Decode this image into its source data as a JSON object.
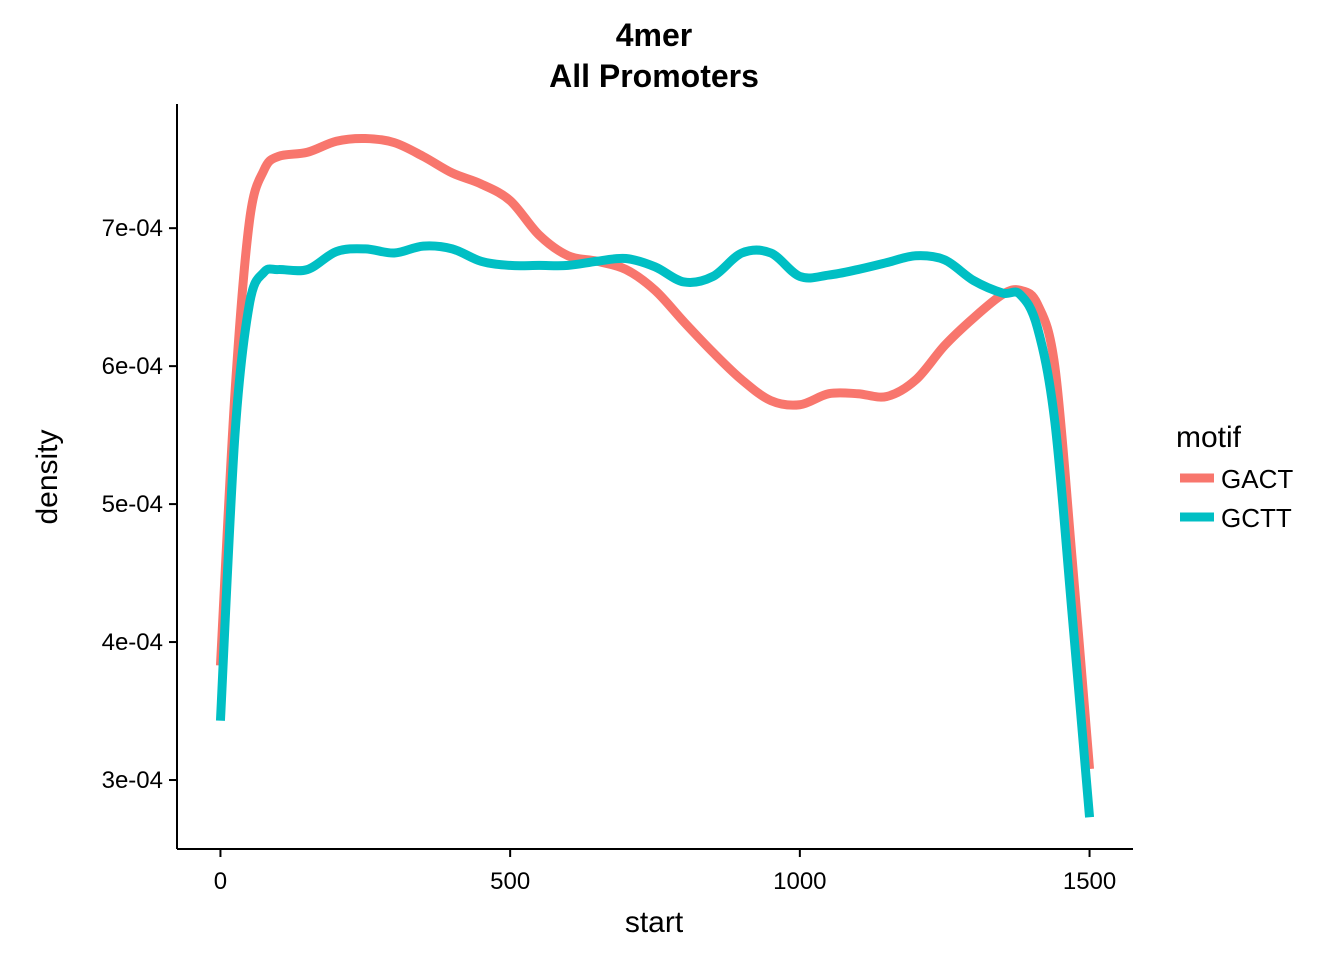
{
  "chart_data": {
    "type": "line",
    "title": [
      "4mer",
      "All Promoters"
    ],
    "xlabel": "start",
    "ylabel": "density",
    "xlim": [
      -75,
      1575
    ],
    "ylim": [
      0.00025,
      0.00079
    ],
    "x_ticks": [
      0,
      500,
      1000,
      1500
    ],
    "x_tick_labels": [
      "0",
      "500",
      "1000",
      "1500"
    ],
    "y_ticks": [
      0.0003,
      0.0004,
      0.0005,
      0.0006,
      0.0007
    ],
    "y_tick_labels": [
      "3e-04",
      "4e-04",
      "5e-04",
      "6e-04",
      "7e-04"
    ],
    "grid": false,
    "legend": {
      "title": "motif",
      "position": "right"
    },
    "series": [
      {
        "name": "GACT",
        "color": "#F8766D",
        "x": [
          0,
          25,
          50,
          75,
          100,
          150,
          200,
          250,
          300,
          350,
          400,
          450,
          500,
          550,
          600,
          650,
          700,
          750,
          800,
          850,
          900,
          950,
          1000,
          1050,
          1100,
          1150,
          1200,
          1250,
          1300,
          1350,
          1380,
          1410,
          1440,
          1470,
          1500
        ],
        "y": [
          0.000383,
          0.00058,
          0.000705,
          0.000742,
          0.000752,
          0.000755,
          0.000763,
          0.000765,
          0.000762,
          0.000752,
          0.00074,
          0.000732,
          0.00072,
          0.000695,
          0.00068,
          0.000676,
          0.00067,
          0.000655,
          0.000632,
          0.00061,
          0.00059,
          0.000575,
          0.000572,
          0.00058,
          0.00058,
          0.000578,
          0.00059,
          0.000615,
          0.000635,
          0.000652,
          0.000655,
          0.000645,
          0.0006,
          0.00046,
          0.000308
        ]
      },
      {
        "name": "GCTT",
        "color": "#00BFC4",
        "x": [
          0,
          25,
          50,
          75,
          100,
          150,
          200,
          250,
          300,
          350,
          400,
          450,
          500,
          550,
          600,
          650,
          700,
          750,
          800,
          850,
          900,
          950,
          1000,
          1050,
          1100,
          1150,
          1200,
          1250,
          1300,
          1350,
          1380,
          1410,
          1440,
          1470,
          1500
        ],
        "y": [
          0.000343,
          0.00055,
          0.000645,
          0.000668,
          0.00067,
          0.00067,
          0.000683,
          0.000685,
          0.000682,
          0.000687,
          0.000685,
          0.000676,
          0.000673,
          0.000673,
          0.000673,
          0.000676,
          0.000678,
          0.000672,
          0.000661,
          0.000665,
          0.000682,
          0.000682,
          0.000665,
          0.000666,
          0.00067,
          0.000675,
          0.00068,
          0.000677,
          0.000662,
          0.000653,
          0.000652,
          0.000628,
          0.00056,
          0.00042,
          0.000273
        ]
      }
    ]
  }
}
